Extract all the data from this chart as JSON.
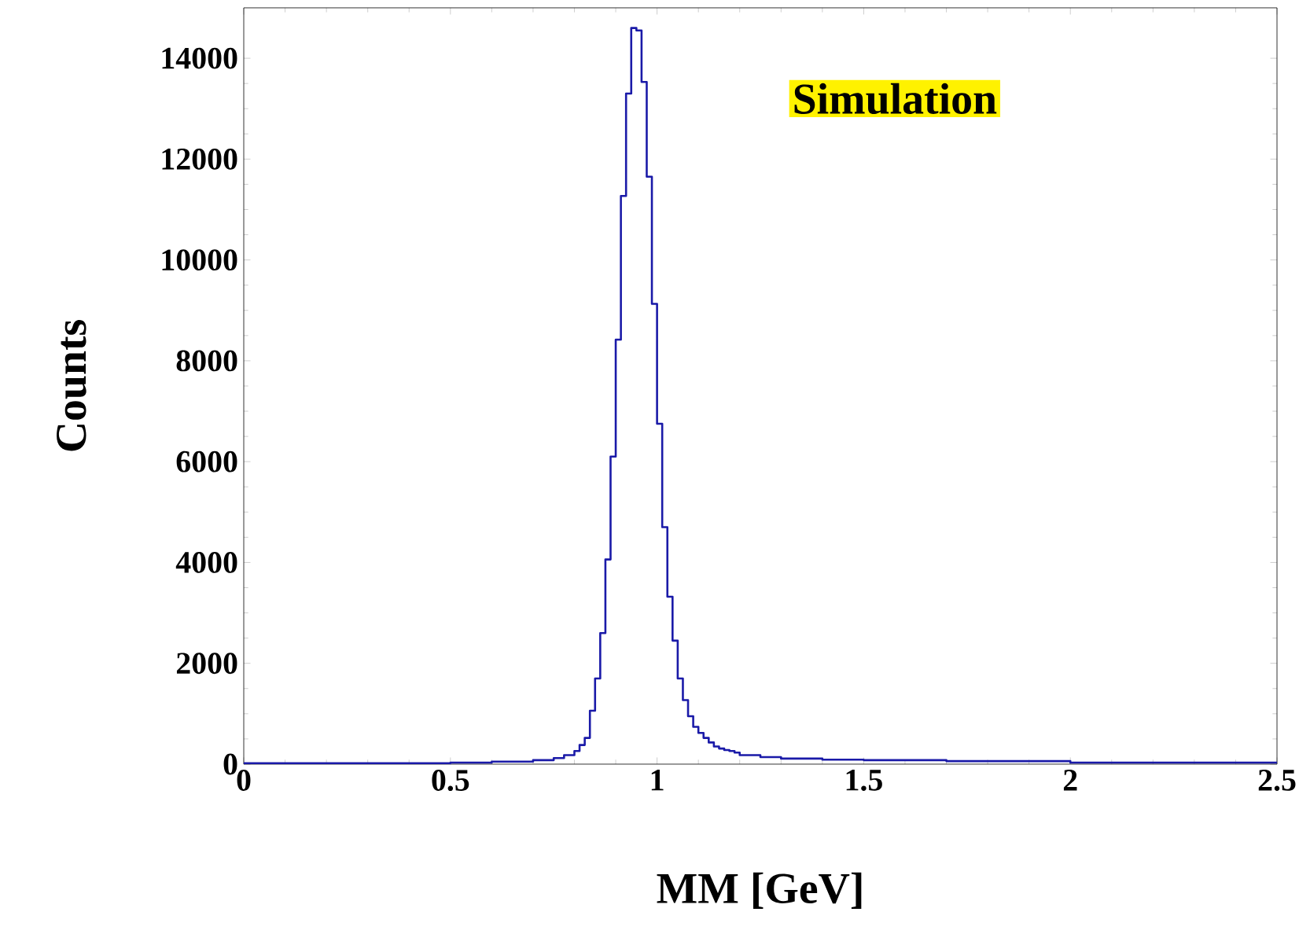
{
  "chart_data": {
    "type": "histogram",
    "xlabel": "MM [GeV]",
    "ylabel": "Counts",
    "annotations": [
      "Simulation"
    ],
    "bins": [
      0,
      0.5,
      0.6,
      0.7,
      0.75,
      0.775,
      0.8,
      0.8125,
      0.825,
      0.8375,
      0.85,
      0.8625,
      0.875,
      0.8875,
      0.9,
      0.9125,
      0.925,
      0.9375,
      0.95,
      0.9625,
      0.975,
      0.9875,
      1.0,
      1.0125,
      1.025,
      1.0375,
      1.05,
      1.0625,
      1.075,
      1.0875,
      1.1,
      1.1125,
      1.125,
      1.1375,
      1.15,
      1.1625,
      1.175,
      1.1875,
      1.2,
      1.25,
      1.3,
      1.4,
      1.5,
      1.7,
      2.0,
      2.5
    ],
    "values": [
      20,
      30,
      50,
      80,
      120,
      180,
      260,
      380,
      520,
      1060,
      1700,
      2600,
      4060,
      6100,
      8420,
      11270,
      13300,
      14600,
      14550,
      13530,
      11650,
      9130,
      6750,
      4700,
      3320,
      2450,
      1700,
      1270,
      950,
      740,
      620,
      520,
      430,
      350,
      310,
      280,
      260,
      230,
      180,
      140,
      110,
      90,
      80,
      60,
      30
    ],
    "color": "#1a1aa8",
    "xlim": [
      0,
      2.5
    ],
    "ylim": [
      0,
      15000
    ],
    "xticks": [
      0,
      0.5,
      1,
      1.5,
      2,
      2.5
    ],
    "yticks": [
      0,
      2000,
      4000,
      6000,
      8000,
      10000,
      12000,
      14000
    ],
    "grid": false
  }
}
